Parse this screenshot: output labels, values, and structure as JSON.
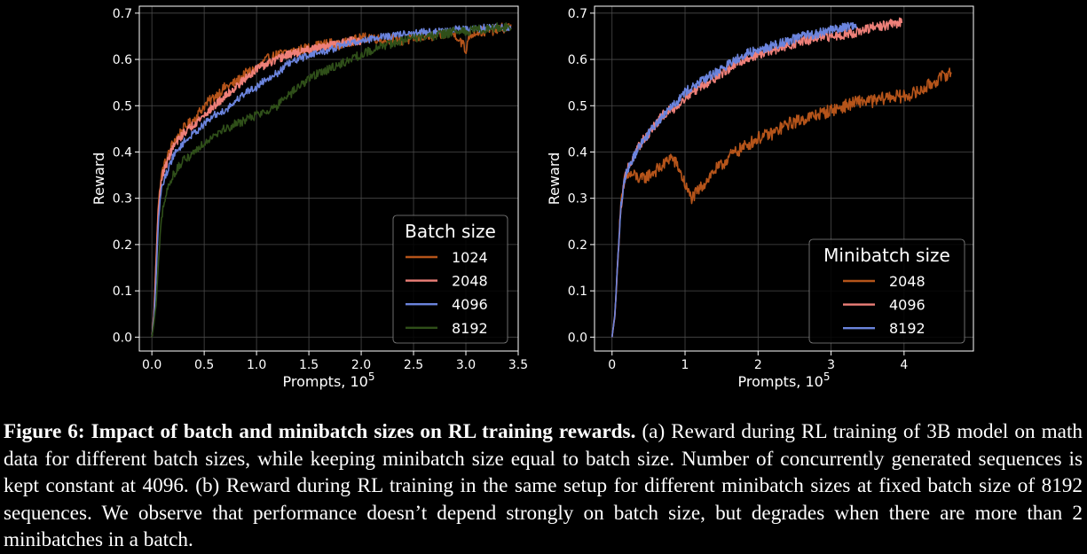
{
  "chart_data": [
    {
      "type": "line",
      "panel": "a",
      "title": "",
      "xlabel": "Prompts, 10",
      "xlabel_exponent": "5",
      "ylabel": "Reward",
      "xlim": [
        -0.12,
        3.5
      ],
      "ylim": [
        -0.03,
        0.715
      ],
      "x_ticks": [
        0.0,
        0.5,
        1.0,
        1.5,
        2.0,
        2.5,
        3.0,
        3.5
      ],
      "x_tick_labels": [
        "0.0",
        "0.5",
        "1.0",
        "1.5",
        "2.0",
        "2.5",
        "3.0",
        "3.5"
      ],
      "y_ticks": [
        0.0,
        0.1,
        0.2,
        0.3,
        0.4,
        0.5,
        0.6,
        0.7
      ],
      "y_tick_labels": [
        "0.0",
        "0.1",
        "0.2",
        "0.3",
        "0.4",
        "0.5",
        "0.6",
        "0.7"
      ],
      "grid": true,
      "legend_title": "Batch size",
      "legend_position": "lower-right",
      "series": [
        {
          "name": "1024",
          "color": "#b5541a",
          "noise": 0.011,
          "x": [
            0,
            0.02,
            0.04,
            0.06,
            0.08,
            0.1,
            0.15,
            0.2,
            0.3,
            0.4,
            0.5,
            0.6,
            0.7,
            0.8,
            0.9,
            1.0,
            1.1,
            1.2,
            1.3,
            1.4,
            1.5,
            1.6,
            1.7,
            1.8,
            1.9,
            2.0,
            2.1,
            2.2,
            2.3,
            2.4,
            2.5,
            2.6,
            2.7,
            2.8,
            2.9,
            2.98,
            3.0,
            3.02,
            3.1,
            3.2,
            3.3,
            3.4,
            3.43
          ],
          "y": [
            0.0,
            0.05,
            0.17,
            0.28,
            0.33,
            0.36,
            0.39,
            0.42,
            0.45,
            0.47,
            0.5,
            0.52,
            0.54,
            0.55,
            0.57,
            0.58,
            0.6,
            0.61,
            0.615,
            0.62,
            0.625,
            0.63,
            0.635,
            0.63,
            0.64,
            0.645,
            0.65,
            0.64,
            0.645,
            0.64,
            0.645,
            0.65,
            0.65,
            0.655,
            0.655,
            0.63,
            0.61,
            0.65,
            0.66,
            0.66,
            0.665,
            0.67,
            0.67
          ]
        },
        {
          "name": "2048",
          "color": "#ee8079",
          "noise": 0.009,
          "x": [
            0,
            0.02,
            0.04,
            0.06,
            0.08,
            0.1,
            0.15,
            0.2,
            0.3,
            0.4,
            0.5,
            0.6,
            0.7,
            0.8,
            0.9,
            1.0,
            1.1,
            1.2,
            1.3,
            1.4,
            1.5,
            1.6,
            1.7,
            1.8,
            1.9,
            2.0
          ],
          "y": [
            0.0,
            0.05,
            0.16,
            0.27,
            0.32,
            0.35,
            0.38,
            0.41,
            0.44,
            0.46,
            0.48,
            0.5,
            0.52,
            0.54,
            0.56,
            0.58,
            0.59,
            0.6,
            0.61,
            0.615,
            0.62,
            0.625,
            0.63,
            0.635,
            0.64,
            0.64
          ]
        },
        {
          "name": "4096",
          "color": "#6b84dd",
          "noise": 0.008,
          "x": [
            0,
            0.02,
            0.04,
            0.06,
            0.08,
            0.1,
            0.15,
            0.2,
            0.3,
            0.4,
            0.5,
            0.6,
            0.7,
            0.8,
            0.9,
            1.0,
            1.1,
            1.2,
            1.3,
            1.4,
            1.5,
            1.6,
            1.7,
            1.8,
            1.9,
            2.0,
            2.1,
            2.2,
            2.3,
            2.4,
            2.5,
            2.6,
            2.7,
            2.8,
            2.9,
            3.0,
            3.1,
            3.2,
            3.3,
            3.43
          ],
          "y": [
            0.0,
            0.04,
            0.12,
            0.24,
            0.3,
            0.33,
            0.36,
            0.39,
            0.42,
            0.44,
            0.46,
            0.48,
            0.49,
            0.51,
            0.53,
            0.54,
            0.56,
            0.57,
            0.59,
            0.6,
            0.61,
            0.615,
            0.62,
            0.63,
            0.635,
            0.64,
            0.645,
            0.65,
            0.65,
            0.655,
            0.655,
            0.66,
            0.66,
            0.66,
            0.665,
            0.665,
            0.665,
            0.67,
            0.67,
            0.665
          ]
        },
        {
          "name": "8192",
          "color": "#2f4f19",
          "noise": 0.01,
          "x": [
            0,
            0.02,
            0.04,
            0.06,
            0.08,
            0.1,
            0.15,
            0.2,
            0.3,
            0.4,
            0.5,
            0.6,
            0.7,
            0.8,
            0.9,
            1.0,
            1.1,
            1.2,
            1.3,
            1.4,
            1.5,
            1.6,
            1.7,
            1.8,
            1.9,
            2.0,
            2.1,
            2.2,
            2.3,
            2.4,
            2.5,
            2.6,
            2.7,
            2.8,
            2.9,
            3.0,
            3.1,
            3.2,
            3.3,
            3.4,
            3.43
          ],
          "y": [
            0.0,
            0.03,
            0.07,
            0.15,
            0.22,
            0.27,
            0.32,
            0.35,
            0.38,
            0.4,
            0.42,
            0.44,
            0.45,
            0.46,
            0.47,
            0.48,
            0.49,
            0.5,
            0.52,
            0.54,
            0.56,
            0.57,
            0.58,
            0.59,
            0.6,
            0.61,
            0.62,
            0.63,
            0.635,
            0.64,
            0.645,
            0.65,
            0.65,
            0.655,
            0.66,
            0.66,
            0.665,
            0.665,
            0.67,
            0.67,
            0.67
          ]
        }
      ]
    },
    {
      "type": "line",
      "panel": "b",
      "title": "",
      "xlabel": "Prompts, 10",
      "xlabel_exponent": "5",
      "ylabel": "Reward",
      "xlim": [
        -0.24,
        4.95
      ],
      "ylim": [
        -0.03,
        0.715
      ],
      "x_ticks": [
        0,
        1,
        2,
        3,
        4
      ],
      "x_tick_labels": [
        "0",
        "1",
        "2",
        "3",
        "4"
      ],
      "y_ticks": [
        0.0,
        0.1,
        0.2,
        0.3,
        0.4,
        0.5,
        0.6,
        0.7
      ],
      "y_tick_labels": [
        "0.0",
        "0.1",
        "0.2",
        "0.3",
        "0.4",
        "0.5",
        "0.6",
        "0.7"
      ],
      "grid": true,
      "legend_title": "Minibatch size",
      "legend_position": "lower-right",
      "series": [
        {
          "name": "2048",
          "color": "#b5541a",
          "noise": 0.014,
          "x": [
            0,
            0.04,
            0.08,
            0.12,
            0.16,
            0.2,
            0.3,
            0.4,
            0.5,
            0.6,
            0.7,
            0.8,
            0.9,
            0.95,
            1.0,
            1.05,
            1.1,
            1.2,
            1.3,
            1.4,
            1.5,
            1.6,
            1.8,
            2.0,
            2.2,
            2.4,
            2.6,
            2.8,
            3.0,
            3.2,
            3.4,
            3.6,
            3.8,
            4.0,
            4.2,
            4.4,
            4.6,
            4.65
          ],
          "y": [
            0.0,
            0.05,
            0.17,
            0.28,
            0.33,
            0.35,
            0.35,
            0.34,
            0.35,
            0.36,
            0.37,
            0.39,
            0.37,
            0.35,
            0.33,
            0.31,
            0.3,
            0.32,
            0.34,
            0.36,
            0.37,
            0.39,
            0.41,
            0.43,
            0.44,
            0.46,
            0.47,
            0.48,
            0.49,
            0.5,
            0.51,
            0.51,
            0.52,
            0.52,
            0.53,
            0.55,
            0.57,
            0.57
          ]
        },
        {
          "name": "4096",
          "color": "#ee8079",
          "noise": 0.011,
          "x": [
            0,
            0.04,
            0.08,
            0.12,
            0.16,
            0.2,
            0.3,
            0.4,
            0.5,
            0.6,
            0.7,
            0.8,
            0.9,
            1.0,
            1.2,
            1.4,
            1.6,
            1.8,
            2.0,
            2.2,
            2.4,
            2.6,
            2.8,
            3.0,
            3.2,
            3.4,
            3.6,
            3.8,
            3.97
          ],
          "y": [
            0.0,
            0.05,
            0.17,
            0.28,
            0.33,
            0.36,
            0.39,
            0.42,
            0.44,
            0.46,
            0.48,
            0.49,
            0.5,
            0.52,
            0.54,
            0.56,
            0.58,
            0.6,
            0.61,
            0.62,
            0.63,
            0.64,
            0.645,
            0.65,
            0.655,
            0.66,
            0.67,
            0.675,
            0.68
          ]
        },
        {
          "name": "8192",
          "color": "#6b84dd",
          "noise": 0.01,
          "x": [
            0,
            0.04,
            0.08,
            0.12,
            0.16,
            0.2,
            0.3,
            0.4,
            0.5,
            0.6,
            0.7,
            0.8,
            0.9,
            1.0,
            1.2,
            1.4,
            1.6,
            1.8,
            2.0,
            2.2,
            2.4,
            2.6,
            2.8,
            3.0,
            3.2,
            3.35
          ],
          "y": [
            0.0,
            0.05,
            0.17,
            0.28,
            0.33,
            0.36,
            0.39,
            0.42,
            0.44,
            0.46,
            0.48,
            0.5,
            0.51,
            0.53,
            0.55,
            0.57,
            0.59,
            0.61,
            0.62,
            0.63,
            0.64,
            0.65,
            0.655,
            0.665,
            0.67,
            0.675
          ]
        }
      ]
    }
  ],
  "caption": {
    "title": "Figure 6: Impact of batch and minibatch sizes on RL training rewards.",
    "text": "(a) Reward during RL training of 3B model on math data for different batch sizes, while keeping minibatch size equal to batch size. Number of concurrently generated sequences is kept constant at 4096. (b) Reward during RL training in the same setup for different minibatch sizes at fixed batch size of 8192 sequences. We observe that performance doesn’t depend strongly on batch size, but degrades when there are more than 2 minibatches in a batch."
  }
}
